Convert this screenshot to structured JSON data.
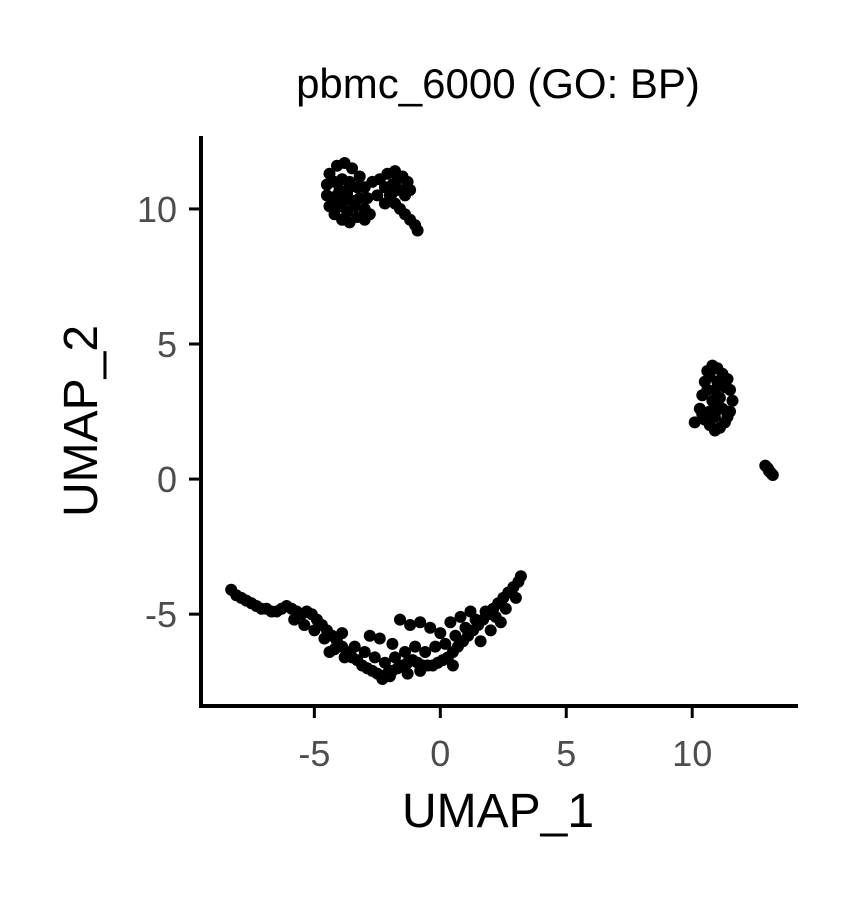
{
  "chart_data": {
    "type": "scatter",
    "title": "pbmc_6000 (GO: BP)",
    "xlabel": "UMAP_1",
    "ylabel": "UMAP_2",
    "xlim": [
      -9.5,
      14.2
    ],
    "ylim": [
      -8.4,
      12.7
    ],
    "x_ticks": [
      -5,
      0,
      5,
      10
    ],
    "y_ticks": [
      -5,
      0,
      5,
      10
    ],
    "grid": false,
    "legend": "none",
    "point_color": "#000000",
    "series": [
      {
        "values": [
          [
            -4.4,
            11.3
          ],
          [
            -4.1,
            11.6
          ],
          [
            -3.8,
            11.7
          ],
          [
            -3.5,
            11.5
          ],
          [
            -3.2,
            11.2
          ],
          [
            -3.0,
            10.8
          ],
          [
            -2.9,
            10.4
          ],
          [
            -3.0,
            10.0
          ],
          [
            -3.3,
            9.7
          ],
          [
            -3.6,
            9.5
          ],
          [
            -3.9,
            9.6
          ],
          [
            -4.2,
            9.8
          ],
          [
            -4.4,
            10.1
          ],
          [
            -4.5,
            10.5
          ],
          [
            -4.5,
            10.9
          ],
          [
            -4.2,
            11.0
          ],
          [
            -3.9,
            11.1
          ],
          [
            -3.6,
            11.0
          ],
          [
            -3.3,
            10.8
          ],
          [
            -3.2,
            10.4
          ],
          [
            -3.4,
            10.1
          ],
          [
            -3.7,
            9.9
          ],
          [
            -4.0,
            10.1
          ],
          [
            -4.2,
            10.4
          ],
          [
            -4.0,
            10.7
          ],
          [
            -3.7,
            10.6
          ],
          [
            -3.5,
            10.3
          ],
          [
            -3.8,
            10.3
          ],
          [
            -3.6,
            10.8
          ],
          [
            -4.1,
            10.5
          ],
          [
            -2.7,
            11.0
          ],
          [
            -2.4,
            11.1
          ],
          [
            -2.2,
            10.8
          ],
          [
            -2.0,
            10.5
          ],
          [
            -1.8,
            10.2
          ],
          [
            -1.6,
            10.0
          ],
          [
            -1.4,
            9.8
          ],
          [
            -1.2,
            9.6
          ],
          [
            -1.0,
            9.4
          ],
          [
            -0.9,
            9.2
          ],
          [
            -2.5,
            10.5
          ],
          [
            -2.2,
            10.2
          ],
          [
            -1.9,
            10.9
          ],
          [
            -1.7,
            11.1
          ],
          [
            -1.5,
            11.2
          ],
          [
            -1.3,
            11.0
          ],
          [
            -1.2,
            10.7
          ],
          [
            -1.4,
            10.5
          ],
          [
            -1.6,
            10.7
          ],
          [
            -1.9,
            10.6
          ],
          [
            -2.1,
            11.3
          ],
          [
            -1.8,
            11.4
          ],
          [
            -3.0,
            9.6
          ],
          [
            -2.8,
            9.8
          ]
        ]
      },
      {
        "values": [
          [
            10.1,
            2.1
          ],
          [
            10.3,
            2.6
          ],
          [
            10.4,
            3.1
          ],
          [
            10.5,
            3.6
          ],
          [
            10.6,
            4.0
          ],
          [
            10.8,
            4.2
          ],
          [
            11.0,
            4.1
          ],
          [
            11.2,
            3.9
          ],
          [
            11.4,
            3.7
          ],
          [
            11.5,
            3.3
          ],
          [
            11.6,
            2.9
          ],
          [
            11.5,
            2.5
          ],
          [
            11.3,
            2.1
          ],
          [
            11.1,
            1.9
          ],
          [
            10.9,
            1.8
          ],
          [
            10.7,
            2.0
          ],
          [
            10.5,
            2.2
          ],
          [
            10.7,
            2.5
          ],
          [
            10.8,
            2.9
          ],
          [
            10.9,
            3.3
          ],
          [
            11.0,
            3.6
          ],
          [
            11.1,
            3.0
          ],
          [
            11.2,
            2.6
          ],
          [
            10.9,
            2.3
          ],
          [
            10.6,
            3.3
          ],
          [
            10.7,
            3.8
          ],
          [
            11.3,
            3.4
          ],
          [
            11.0,
            2.7
          ],
          [
            10.4,
            2.4
          ],
          [
            11.4,
            2.3
          ],
          [
            12.9,
            0.5
          ],
          [
            13.0,
            0.4
          ],
          [
            13.05,
            0.3
          ],
          [
            13.1,
            0.25
          ],
          [
            13.15,
            0.2
          ],
          [
            13.2,
            0.15
          ]
        ]
      },
      {
        "values": [
          [
            -8.3,
            -4.1
          ],
          [
            -8.1,
            -4.3
          ],
          [
            -7.9,
            -4.4
          ],
          [
            -7.7,
            -4.5
          ],
          [
            -7.5,
            -4.6
          ],
          [
            -7.3,
            -4.7
          ],
          [
            -7.1,
            -4.8
          ],
          [
            -6.9,
            -4.8
          ],
          [
            -6.7,
            -4.9
          ],
          [
            -6.5,
            -4.9
          ],
          [
            -6.3,
            -4.8
          ],
          [
            -6.1,
            -4.7
          ],
          [
            -5.9,
            -4.8
          ],
          [
            -5.7,
            -4.9
          ],
          [
            -5.5,
            -5.0
          ],
          [
            -5.3,
            -4.9
          ],
          [
            -5.1,
            -5.0
          ],
          [
            -4.9,
            -5.2
          ],
          [
            -4.7,
            -5.4
          ],
          [
            -4.5,
            -5.6
          ],
          [
            -4.3,
            -5.8
          ],
          [
            -4.1,
            -6.0
          ],
          [
            -3.9,
            -6.2
          ],
          [
            -3.7,
            -6.4
          ],
          [
            -3.5,
            -6.6
          ],
          [
            -3.3,
            -6.7
          ],
          [
            -3.1,
            -6.9
          ],
          [
            -2.9,
            -7.0
          ],
          [
            -2.7,
            -7.1
          ],
          [
            -2.5,
            -7.2
          ],
          [
            -2.3,
            -7.4
          ],
          [
            -2.1,
            -7.2
          ],
          [
            -1.9,
            -7.1
          ],
          [
            -1.7,
            -7.0
          ],
          [
            -1.5,
            -6.9
          ],
          [
            -1.3,
            -6.8
          ],
          [
            -1.1,
            -6.7
          ],
          [
            -0.9,
            -6.8
          ],
          [
            -0.7,
            -6.9
          ],
          [
            -0.5,
            -6.9
          ],
          [
            -0.3,
            -6.9
          ],
          [
            -0.1,
            -6.8
          ],
          [
            0.1,
            -6.7
          ],
          [
            0.3,
            -6.6
          ],
          [
            0.5,
            -6.4
          ],
          [
            0.7,
            -6.2
          ],
          [
            0.9,
            -6.0
          ],
          [
            1.1,
            -5.8
          ],
          [
            1.3,
            -5.6
          ],
          [
            1.5,
            -5.4
          ],
          [
            1.7,
            -5.2
          ],
          [
            1.9,
            -5.0
          ],
          [
            2.1,
            -4.8
          ],
          [
            2.3,
            -4.6
          ],
          [
            2.5,
            -4.4
          ],
          [
            2.7,
            -4.2
          ],
          [
            2.9,
            -4.0
          ],
          [
            3.1,
            -3.8
          ],
          [
            3.2,
            -3.6
          ],
          [
            3.0,
            -4.4
          ],
          [
            -5.8,
            -5.2
          ],
          [
            -5.4,
            -5.4
          ],
          [
            -5.0,
            -5.6
          ],
          [
            -4.6,
            -5.9
          ],
          [
            -4.2,
            -6.3
          ],
          [
            -3.8,
            -6.6
          ],
          [
            -3.4,
            -6.2
          ],
          [
            -3.0,
            -6.4
          ],
          [
            -2.6,
            -6.6
          ],
          [
            -2.2,
            -6.8
          ],
          [
            -1.8,
            -6.6
          ],
          [
            -1.4,
            -6.4
          ],
          [
            -1.0,
            -6.2
          ],
          [
            -0.6,
            -6.4
          ],
          [
            -0.2,
            -6.2
          ],
          [
            0.2,
            -6.1
          ],
          [
            0.6,
            -5.8
          ],
          [
            1.0,
            -5.5
          ],
          [
            1.4,
            -5.2
          ],
          [
            1.8,
            -4.9
          ],
          [
            2.2,
            -5.1
          ],
          [
            2.6,
            -4.8
          ],
          [
            -1.6,
            -5.2
          ],
          [
            -1.2,
            -5.4
          ],
          [
            -0.8,
            -5.3
          ],
          [
            -0.4,
            -5.5
          ],
          [
            0.0,
            -5.7
          ],
          [
            0.4,
            -5.3
          ],
          [
            0.8,
            -5.1
          ],
          [
            1.2,
            -4.9
          ],
          [
            -2.4,
            -5.9
          ],
          [
            -1.9,
            -6.1
          ],
          [
            -2.8,
            -5.8
          ],
          [
            -4.4,
            -6.4
          ],
          [
            -3.9,
            -5.7
          ],
          [
            -0.8,
            -7.1
          ],
          [
            -2.0,
            -7.3
          ],
          [
            -1.3,
            -7.2
          ],
          [
            0.5,
            -6.9
          ],
          [
            1.6,
            -6.0
          ],
          [
            2.0,
            -5.6
          ],
          [
            2.4,
            -5.3
          ]
        ]
      }
    ]
  }
}
